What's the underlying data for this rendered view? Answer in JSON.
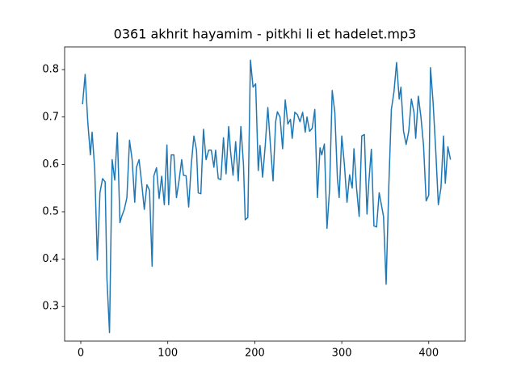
{
  "chart_data": {
    "type": "line",
    "title": "0361 akhrit hayamim - pitkhi li et hadelet.mp3",
    "x": [
      2,
      5,
      8,
      11,
      13,
      16,
      19,
      22,
      25,
      28,
      30,
      33,
      36,
      39,
      42,
      45,
      47,
      50,
      53,
      56,
      59,
      62,
      64,
      67,
      70,
      73,
      76,
      79,
      82,
      84,
      87,
      90,
      93,
      96,
      99,
      101,
      104,
      107,
      110,
      113,
      116,
      118,
      121,
      124,
      127,
      130,
      133,
      135,
      138,
      141,
      144,
      147,
      150,
      153,
      155,
      158,
      161,
      164,
      167,
      170,
      172,
      175,
      178,
      181,
      184,
      187,
      189,
      192,
      195,
      198,
      201,
      204,
      206,
      209,
      212,
      215,
      218,
      221,
      224,
      226,
      229,
      232,
      235,
      238,
      241,
      243,
      246,
      249,
      252,
      255,
      258,
      260,
      263,
      266,
      269,
      272,
      275,
      277,
      280,
      283,
      286,
      289,
      292,
      295,
      297,
      300,
      303,
      306,
      309,
      312,
      314,
      317,
      320,
      323,
      326,
      329,
      331,
      334,
      337,
      340,
      343,
      346,
      348,
      351,
      354,
      357,
      360,
      363,
      366,
      368,
      371,
      374,
      377,
      380,
      383,
      385,
      388,
      391,
      394,
      397,
      400,
      402,
      405,
      408,
      411,
      414,
      417,
      419,
      422,
      425
    ],
    "series": [
      {
        "color": "#1f77b4",
        "values": [
          0.727,
          0.79,
          0.69,
          0.62,
          0.668,
          0.59,
          0.398,
          0.54,
          0.57,
          0.563,
          0.36,
          0.245,
          0.61,
          0.567,
          0.667,
          0.477,
          0.49,
          0.505,
          0.53,
          0.651,
          0.61,
          0.52,
          0.594,
          0.61,
          0.56,
          0.505,
          0.557,
          0.545,
          0.385,
          0.576,
          0.593,
          0.528,
          0.575,
          0.515,
          0.641,
          0.515,
          0.62,
          0.62,
          0.53,
          0.567,
          0.61,
          0.577,
          0.576,
          0.51,
          0.6,
          0.66,
          0.63,
          0.54,
          0.538,
          0.674,
          0.61,
          0.63,
          0.63,
          0.594,
          0.63,
          0.57,
          0.568,
          0.656,
          0.58,
          0.68,
          0.63,
          0.577,
          0.648,
          0.565,
          0.68,
          0.6,
          0.483,
          0.488,
          0.82,
          0.763,
          0.77,
          0.587,
          0.64,
          0.573,
          0.64,
          0.72,
          0.64,
          0.565,
          0.69,
          0.711,
          0.7,
          0.633,
          0.736,
          0.685,
          0.695,
          0.655,
          0.71,
          0.705,
          0.69,
          0.71,
          0.668,
          0.7,
          0.67,
          0.676,
          0.716,
          0.53,
          0.635,
          0.62,
          0.643,
          0.465,
          0.548,
          0.756,
          0.71,
          0.57,
          0.53,
          0.66,
          0.6,
          0.52,
          0.578,
          0.55,
          0.633,
          0.55,
          0.49,
          0.66,
          0.663,
          0.495,
          0.56,
          0.632,
          0.47,
          0.468,
          0.54,
          0.51,
          0.49,
          0.347,
          0.55,
          0.716,
          0.753,
          0.815,
          0.738,
          0.763,
          0.67,
          0.642,
          0.67,
          0.738,
          0.71,
          0.655,
          0.744,
          0.7,
          0.64,
          0.523,
          0.535,
          0.804,
          0.73,
          0.63,
          0.515,
          0.55,
          0.66,
          0.56,
          0.637,
          0.61
        ]
      }
    ],
    "xlim": [
      -18.6,
      442
    ],
    "ylim": [
      0.227,
      0.848
    ],
    "xticks": [
      0,
      100,
      200,
      300,
      400
    ],
    "yticks": [
      0.3,
      0.4,
      0.5,
      0.6,
      0.7,
      0.8
    ]
  }
}
